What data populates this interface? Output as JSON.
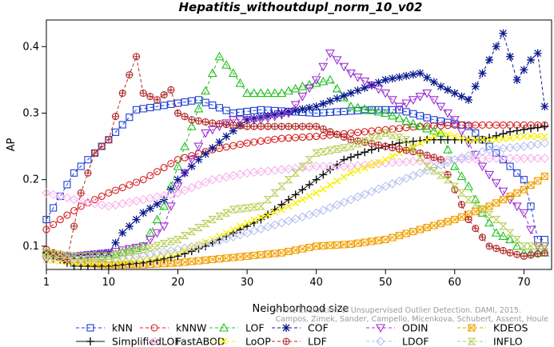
{
  "chart_data": {
    "type": "line",
    "title": "Hepatitis_withoutdupl_norm_10_v02",
    "xlabel": "Neighborhood size",
    "ylabel": "AP",
    "xlim": [
      1,
      74
    ],
    "ylim": [
      0.065,
      0.44
    ],
    "xticks": [
      "1",
      "10",
      "20",
      "30",
      "40",
      "50",
      "60",
      "70"
    ],
    "yticks": [
      "0.1",
      "0.2",
      "0.3",
      "0.4"
    ],
    "grid": false,
    "legend_position": "bottom",
    "credit": [
      "Campos, Zimek, Sander, Campello, Micenkova, Schubert, Assent, Houle",
      "On the Evaluation of Unsupervised Outlier Detection. DAMI, 2015."
    ],
    "series": [
      {
        "name": "kNN",
        "color": "#1f3fd6",
        "marker": "square",
        "dash": "4,3",
        "points": [
          [
            1,
            0.14
          ],
          [
            5,
            0.21
          ],
          [
            10,
            0.26
          ],
          [
            14,
            0.305
          ],
          [
            20,
            0.315
          ],
          [
            23,
            0.32
          ],
          [
            28,
            0.3
          ],
          [
            32,
            0.305
          ],
          [
            40,
            0.3
          ],
          [
            48,
            0.305
          ],
          [
            52,
            0.305
          ],
          [
            57,
            0.29
          ],
          [
            62,
            0.28
          ],
          [
            66,
            0.24
          ],
          [
            70,
            0.2
          ],
          [
            71,
            0.16
          ],
          [
            72,
            0.11
          ],
          [
            73,
            0.11
          ]
        ]
      },
      {
        "name": "kNNW",
        "color": "#d81e1e",
        "marker": "circle",
        "dash": "4,3",
        "points": [
          [
            1,
            0.125
          ],
          [
            3,
            0.14
          ],
          [
            6,
            0.16
          ],
          [
            10,
            0.18
          ],
          [
            15,
            0.2
          ],
          [
            20,
            0.23
          ],
          [
            25,
            0.245
          ],
          [
            30,
            0.255
          ],
          [
            35,
            0.262
          ],
          [
            40,
            0.265
          ],
          [
            45,
            0.27
          ],
          [
            50,
            0.275
          ],
          [
            55,
            0.28
          ],
          [
            60,
            0.282
          ],
          [
            65,
            0.282
          ],
          [
            73,
            0.282
          ]
        ]
      },
      {
        "name": "LOF",
        "color": "#1fbf1f",
        "marker": "triangle",
        "dash": "4,3",
        "points": [
          [
            1,
            0.09
          ],
          [
            5,
            0.08
          ],
          [
            10,
            0.085
          ],
          [
            15,
            0.1
          ],
          [
            18,
            0.16
          ],
          [
            20,
            0.22
          ],
          [
            22,
            0.28
          ],
          [
            25,
            0.36
          ],
          [
            26,
            0.385
          ],
          [
            28,
            0.36
          ],
          [
            30,
            0.33
          ],
          [
            35,
            0.33
          ],
          [
            38,
            0.34
          ],
          [
            42,
            0.35
          ],
          [
            45,
            0.31
          ],
          [
            50,
            0.3
          ],
          [
            55,
            0.28
          ],
          [
            58,
            0.27
          ],
          [
            60,
            0.22
          ],
          [
            62,
            0.19
          ],
          [
            64,
            0.15
          ],
          [
            66,
            0.12
          ],
          [
            68,
            0.11
          ],
          [
            70,
            0.09
          ],
          [
            73,
            0.09
          ]
        ]
      },
      {
        "name": "COF",
        "color": "#0a1a8f",
        "marker": "asterisk",
        "dash": "4,3",
        "points": [
          [
            1,
            0.09
          ],
          [
            5,
            0.085
          ],
          [
            10,
            0.09
          ],
          [
            12,
            0.12
          ],
          [
            15,
            0.15
          ],
          [
            18,
            0.17
          ],
          [
            20,
            0.2
          ],
          [
            23,
            0.23
          ],
          [
            27,
            0.265
          ],
          [
            30,
            0.29
          ],
          [
            35,
            0.3
          ],
          [
            40,
            0.31
          ],
          [
            45,
            0.33
          ],
          [
            50,
            0.35
          ],
          [
            55,
            0.36
          ],
          [
            58,
            0.34
          ],
          [
            60,
            0.33
          ],
          [
            62,
            0.32
          ],
          [
            65,
            0.38
          ],
          [
            67,
            0.42
          ],
          [
            69,
            0.35
          ],
          [
            71,
            0.38
          ],
          [
            72,
            0.39
          ],
          [
            73,
            0.31
          ]
        ]
      },
      {
        "name": "ODIN",
        "color": "#9b2fd0",
        "marker": "triangle-down",
        "dash": "4,3",
        "points": [
          [
            1,
            0.08
          ],
          [
            5,
            0.085
          ],
          [
            10,
            0.09
          ],
          [
            15,
            0.1
          ],
          [
            18,
            0.13
          ],
          [
            20,
            0.19
          ],
          [
            24,
            0.27
          ],
          [
            28,
            0.29
          ],
          [
            32,
            0.29
          ],
          [
            36,
            0.3
          ],
          [
            40,
            0.35
          ],
          [
            42,
            0.39
          ],
          [
            45,
            0.36
          ],
          [
            50,
            0.33
          ],
          [
            52,
            0.31
          ],
          [
            56,
            0.33
          ],
          [
            60,
            0.29
          ],
          [
            64,
            0.22
          ],
          [
            68,
            0.17
          ],
          [
            70,
            0.15
          ],
          [
            72,
            0.1
          ]
        ]
      },
      {
        "name": "KDEOS",
        "color": "#f0a000",
        "marker": "square-x",
        "dash": "4,3",
        "points": [
          [
            1,
            0.09
          ],
          [
            5,
            0.075
          ],
          [
            10,
            0.072
          ],
          [
            15,
            0.072
          ],
          [
            20,
            0.075
          ],
          [
            25,
            0.08
          ],
          [
            30,
            0.085
          ],
          [
            35,
            0.09
          ],
          [
            40,
            0.1
          ],
          [
            45,
            0.103
          ],
          [
            50,
            0.11
          ],
          [
            55,
            0.125
          ],
          [
            60,
            0.14
          ],
          [
            65,
            0.16
          ],
          [
            70,
            0.185
          ],
          [
            73,
            0.205
          ]
        ]
      },
      {
        "name": "SimplifiedLOF",
        "color": "#111111",
        "marker": "plus",
        "dash": "",
        "points": [
          [
            1,
            0.09
          ],
          [
            5,
            0.07
          ],
          [
            10,
            0.07
          ],
          [
            15,
            0.075
          ],
          [
            20,
            0.085
          ],
          [
            24,
            0.1
          ],
          [
            28,
            0.12
          ],
          [
            32,
            0.14
          ],
          [
            36,
            0.17
          ],
          [
            40,
            0.2
          ],
          [
            44,
            0.23
          ],
          [
            48,
            0.245
          ],
          [
            52,
            0.255
          ],
          [
            56,
            0.26
          ],
          [
            60,
            0.26
          ],
          [
            64,
            0.26
          ],
          [
            68,
            0.272
          ],
          [
            73,
            0.28
          ]
        ]
      },
      {
        "name": "FastABOD",
        "color": "#f7b3ec",
        "marker": "diamond",
        "dash": "4,3",
        "points": [
          [
            1,
            0.18
          ],
          [
            5,
            0.17
          ],
          [
            10,
            0.16
          ],
          [
            15,
            0.17
          ],
          [
            20,
            0.18
          ],
          [
            25,
            0.2
          ],
          [
            30,
            0.21
          ],
          [
            35,
            0.215
          ],
          [
            40,
            0.22
          ],
          [
            45,
            0.22
          ],
          [
            50,
            0.225
          ],
          [
            55,
            0.228
          ],
          [
            60,
            0.23
          ],
          [
            65,
            0.232
          ],
          [
            70,
            0.232
          ],
          [
            73,
            0.232
          ]
        ]
      },
      {
        "name": "LoOP",
        "color": "#f7f000",
        "marker": "x",
        "dash": "4,3",
        "points": [
          [
            1,
            0.08
          ],
          [
            5,
            0.075
          ],
          [
            10,
            0.075
          ],
          [
            15,
            0.08
          ],
          [
            20,
            0.09
          ],
          [
            25,
            0.11
          ],
          [
            30,
            0.135
          ],
          [
            35,
            0.155
          ],
          [
            40,
            0.18
          ],
          [
            45,
            0.21
          ],
          [
            50,
            0.23
          ],
          [
            55,
            0.255
          ],
          [
            58,
            0.27
          ],
          [
            62,
            0.26
          ],
          [
            66,
            0.26
          ],
          [
            70,
            0.265
          ],
          [
            73,
            0.265
          ]
        ]
      },
      {
        "name": "LDF",
        "color": "#b22828",
        "marker": "circle-plus",
        "dash": "4,3",
        "points": [
          [
            1,
            0.095
          ],
          [
            4,
            0.08
          ],
          [
            6,
            0.18
          ],
          [
            8,
            0.24
          ],
          [
            10,
            0.26
          ],
          [
            12,
            0.33
          ],
          [
            14,
            0.385
          ],
          [
            15,
            0.33
          ],
          [
            17,
            0.32
          ],
          [
            19,
            0.335
          ],
          [
            20,
            0.3
          ],
          [
            22,
            0.29
          ],
          [
            25,
            0.285
          ],
          [
            30,
            0.28
          ],
          [
            35,
            0.28
          ],
          [
            40,
            0.28
          ],
          [
            45,
            0.26
          ],
          [
            50,
            0.25
          ],
          [
            55,
            0.24
          ],
          [
            58,
            0.23
          ],
          [
            62,
            0.14
          ],
          [
            65,
            0.1
          ],
          [
            68,
            0.09
          ],
          [
            70,
            0.085
          ],
          [
            73,
            0.09
          ]
        ]
      },
      {
        "name": "LDOF",
        "color": "#b8c0f2",
        "marker": "diamond",
        "dash": "4,3",
        "points": [
          [
            1,
            0.085
          ],
          [
            5,
            0.08
          ],
          [
            10,
            0.08
          ],
          [
            15,
            0.085
          ],
          [
            20,
            0.095
          ],
          [
            25,
            0.105
          ],
          [
            30,
            0.12
          ],
          [
            35,
            0.135
          ],
          [
            40,
            0.15
          ],
          [
            45,
            0.17
          ],
          [
            50,
            0.19
          ],
          [
            55,
            0.21
          ],
          [
            60,
            0.23
          ],
          [
            65,
            0.245
          ],
          [
            70,
            0.25
          ],
          [
            73,
            0.255
          ]
        ]
      },
      {
        "name": "INFLO",
        "color": "#b8cf56",
        "marker": "hourglass",
        "dash": "4,3",
        "points": [
          [
            1,
            0.09
          ],
          [
            5,
            0.085
          ],
          [
            10,
            0.085
          ],
          [
            15,
            0.095
          ],
          [
            20,
            0.11
          ],
          [
            25,
            0.14
          ],
          [
            28,
            0.155
          ],
          [
            32,
            0.16
          ],
          [
            36,
            0.2
          ],
          [
            40,
            0.24
          ],
          [
            45,
            0.25
          ],
          [
            50,
            0.27
          ],
          [
            53,
            0.26
          ],
          [
            56,
            0.22
          ],
          [
            59,
            0.2
          ],
          [
            62,
            0.17
          ],
          [
            66,
            0.14
          ],
          [
            70,
            0.1
          ],
          [
            73,
            0.1
          ]
        ]
      }
    ]
  }
}
